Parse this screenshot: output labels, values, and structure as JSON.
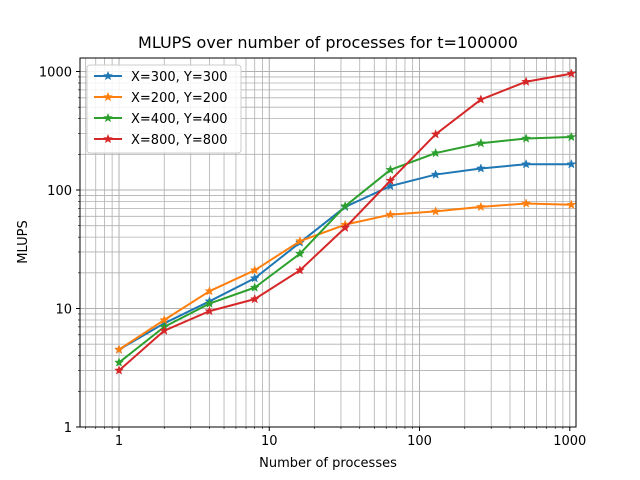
{
  "chart_data": {
    "type": "line",
    "title": "MLUPS over number of processes for t=100000",
    "xlabel": "Number of processes",
    "ylabel": "MLUPS",
    "xscale": "log",
    "yscale": "log",
    "xlim": [
      0.55,
      1100
    ],
    "ylim": [
      1,
      1300
    ],
    "xtick_labels": [
      "1",
      "10",
      "100",
      "1000"
    ],
    "ytick_labels": [
      "1",
      "10",
      "100",
      "1000"
    ],
    "grid": "on (major and minor)",
    "legend_position": "top-left",
    "marker": "star",
    "x": [
      1,
      2,
      4,
      8,
      16,
      32,
      64,
      128,
      256,
      512,
      1024
    ],
    "series": [
      {
        "name": "X=300, Y=300",
        "color": "#1f77b4",
        "values": [
          4.5,
          7.5,
          11.5,
          18,
          36,
          72,
          108,
          135,
          152,
          165,
          165
        ]
      },
      {
        "name": "X=200, Y=200",
        "color": "#ff7f0e",
        "values": [
          4.5,
          8,
          14,
          21,
          37,
          51,
          62,
          66,
          72,
          77,
          75
        ]
      },
      {
        "name": "X=400, Y=400",
        "color": "#2ca02c",
        "values": [
          3.5,
          7,
          11,
          15,
          29,
          73,
          148,
          205,
          248,
          272,
          280
        ]
      },
      {
        "name": "X=800, Y=800",
        "color": "#d62728",
        "values": [
          3,
          6.5,
          9.5,
          12,
          21,
          48,
          120,
          295,
          580,
          820,
          960
        ]
      }
    ]
  }
}
